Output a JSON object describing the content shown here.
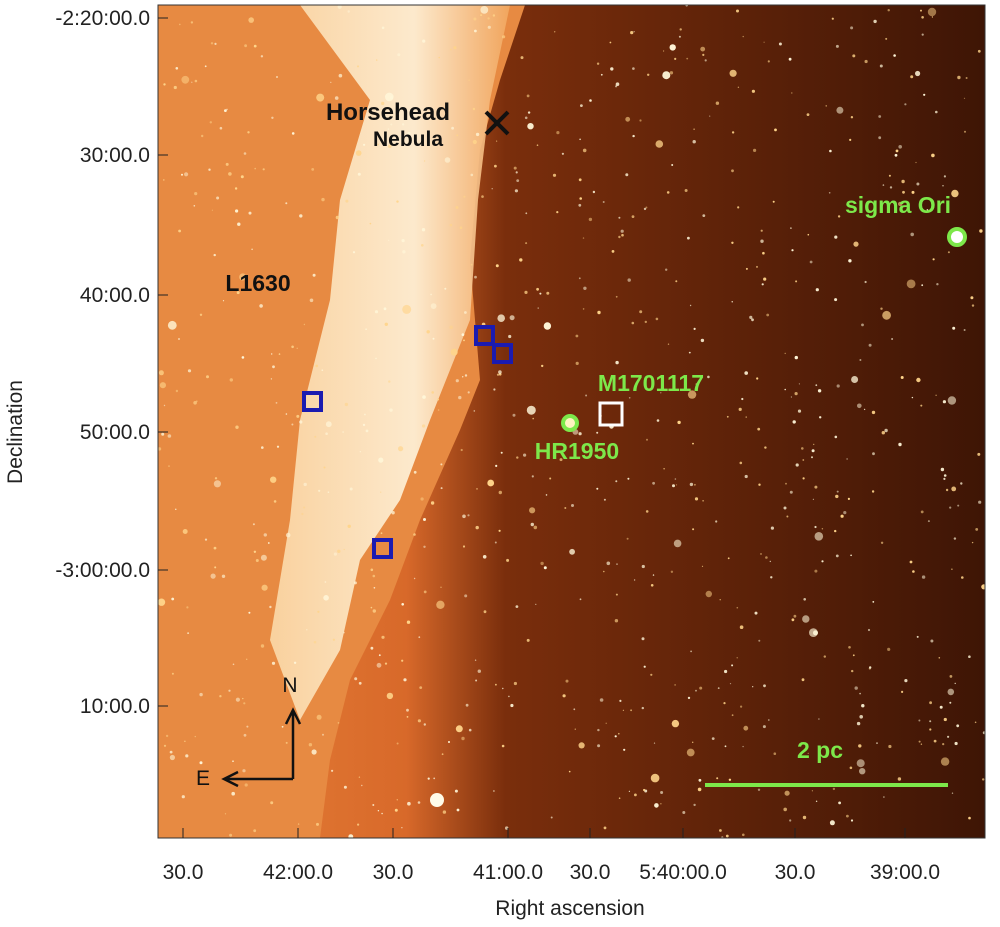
{
  "image": {
    "x_axis": {
      "title": "Right ascension",
      "ticks": [
        "30.0",
        "42:00.0",
        "30.0",
        "41:00.0",
        "30.0",
        "5:40:00.0",
        "30.0",
        "39:00.0"
      ]
    },
    "y_axis": {
      "title": "Declination",
      "ticks": [
        "-2:20:00.0",
        "30:00.0",
        "40:00.0",
        "50:00.0",
        "-3:00:00.0",
        "10:00.0"
      ]
    },
    "annotations": {
      "horsehead": "Horsehead",
      "nebula": "Nebula",
      "cloud": "L1630",
      "sigma": "sigma Ori",
      "target": "M1701117",
      "hr": "HR1950",
      "north": "N",
      "east": "E",
      "scale": "2 pc"
    }
  }
}
